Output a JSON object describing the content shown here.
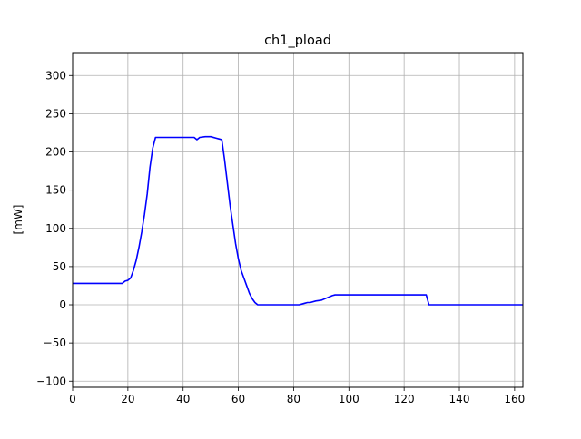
{
  "chart_data": {
    "type": "line",
    "title": "ch1_pload",
    "xlabel": "",
    "ylabel": "[mW]",
    "xlim": [
      0,
      163
    ],
    "ylim": [
      -108,
      330
    ],
    "xticks": [
      0,
      20,
      40,
      60,
      80,
      100,
      120,
      140,
      160
    ],
    "yticks": [
      -100,
      -50,
      0,
      50,
      100,
      150,
      200,
      250,
      300
    ],
    "grid": true,
    "series": [
      {
        "color": "#0000ff",
        "x": [
          0,
          5,
          10,
          15,
          18,
          19,
          20,
          21,
          22,
          23,
          24,
          25,
          26,
          27,
          28,
          29,
          30,
          31,
          35,
          40,
          44,
          45,
          46,
          48,
          50,
          52,
          53,
          54,
          55,
          56,
          57,
          58,
          59,
          60,
          61,
          62,
          63,
          64,
          65,
          66,
          67,
          68,
          69,
          70,
          75,
          80,
          81,
          82,
          83,
          84,
          85,
          86,
          88,
          90,
          92,
          94,
          95,
          100,
          110,
          120,
          127,
          128,
          129,
          130,
          140,
          150,
          160,
          163
        ],
        "y": [
          28,
          28,
          28,
          28,
          28,
          31,
          32,
          35,
          45,
          58,
          75,
          95,
          118,
          145,
          180,
          205,
          219,
          219,
          219,
          219,
          219,
          216,
          219,
          220,
          220,
          218,
          217,
          216,
          190,
          160,
          130,
          105,
          80,
          60,
          45,
          35,
          25,
          15,
          8,
          3,
          0,
          0,
          0,
          0,
          0,
          0,
          0,
          0,
          1,
          2,
          3,
          3,
          5,
          6,
          9,
          12,
          13,
          13,
          13,
          13,
          13,
          13,
          0,
          0,
          0,
          0,
          0,
          0
        ]
      }
    ]
  }
}
